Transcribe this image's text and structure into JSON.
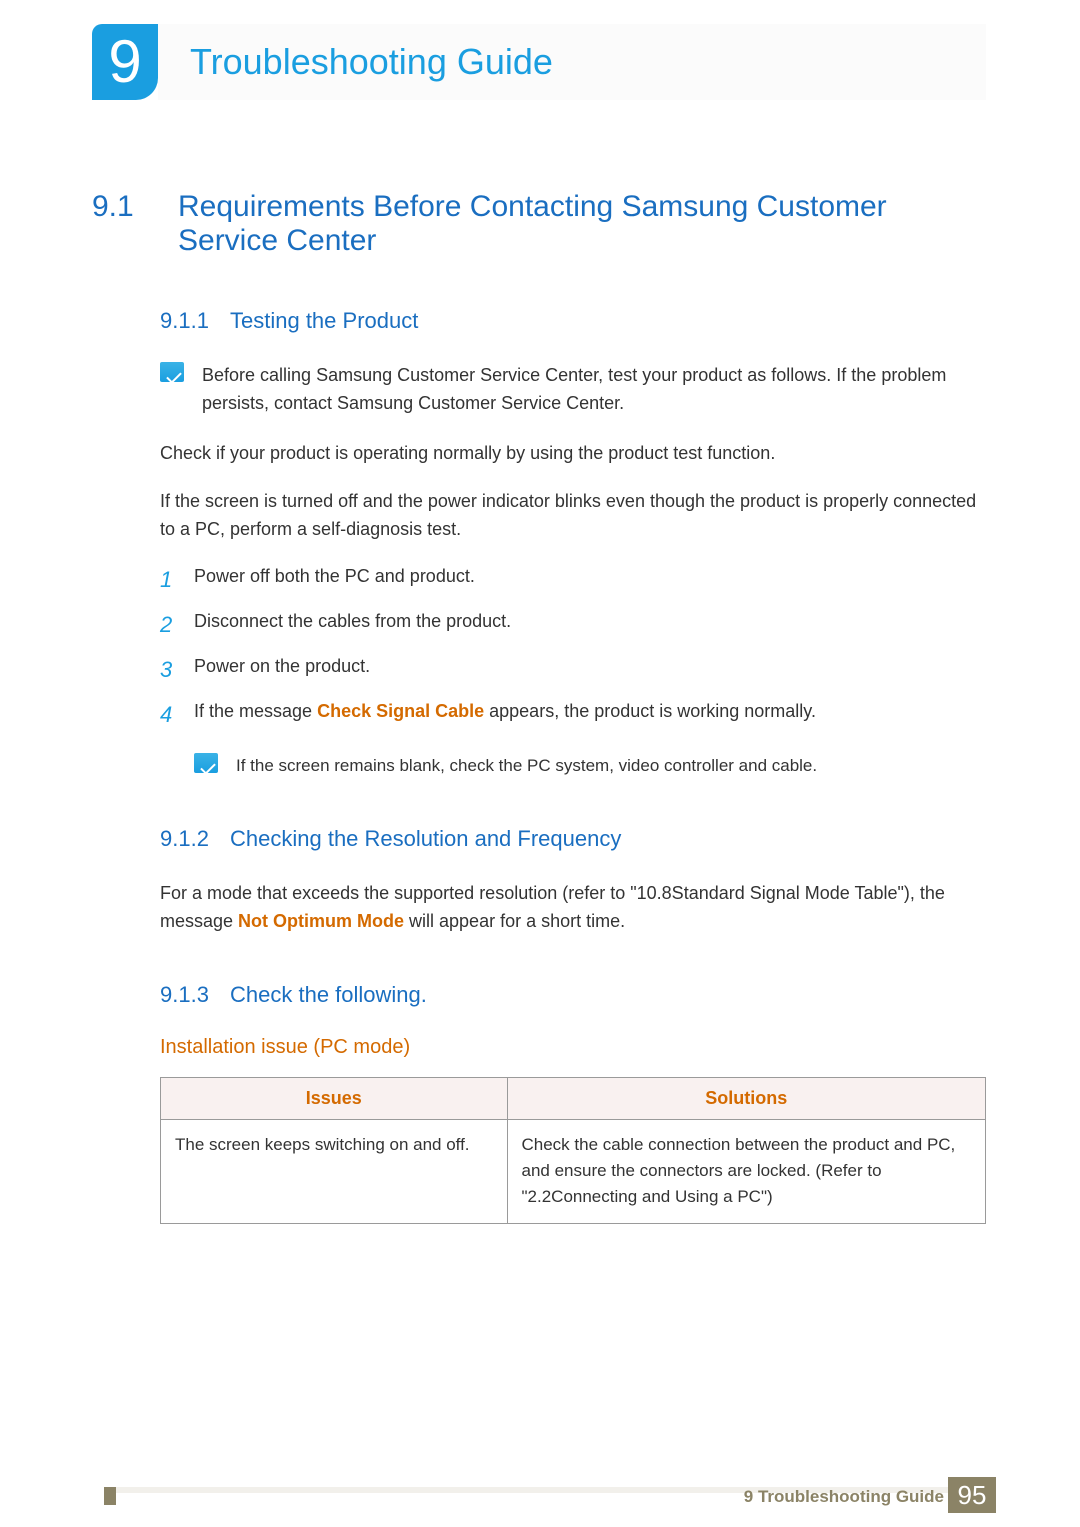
{
  "chapter": {
    "number": "9",
    "title": "Troubleshooting Guide"
  },
  "section": {
    "number": "9.1",
    "title": "Requirements Before Contacting Samsung Customer Service Center"
  },
  "sub1": {
    "number": "9.1.1",
    "title": "Testing the Product",
    "note": "Before calling Samsung Customer Service Center, test your product as follows. If the problem persists, contact Samsung Customer Service Center.",
    "para1": "Check if your product is operating normally by using the product test function.",
    "para2": "If the screen is turned off and the power indicator blinks even though the product is properly connected to a PC, perform a self-diagnosis test.",
    "steps": {
      "s1": "Power off both the PC and product.",
      "s2": "Disconnect the cables from the product.",
      "s3": "Power on the product.",
      "s4_before": "If the message ",
      "s4_bold": "Check Signal Cable",
      "s4_after": " appears, the product is working normally."
    },
    "subnote": "If the screen remains blank, check the PC system, video controller and cable."
  },
  "sub2": {
    "number": "9.1.2",
    "title": "Checking the Resolution and Frequency",
    "para_before": "For a mode that exceeds the supported resolution (refer to \"10.8Standard Signal Mode Table\"), the message ",
    "para_bold": "Not Optimum Mode",
    "para_after": " will appear for a short time."
  },
  "sub3": {
    "number": "9.1.3",
    "title": "Check the following.",
    "subheading": "Installation issue (PC mode)",
    "table": {
      "header_issues": "Issues",
      "header_solutions": "Solutions",
      "row1_issue": "The screen keeps switching on and off.",
      "row1_solution": "Check the cable connection between the product and PC, and ensure the connectors are locked. (Refer to \"2.2Connecting and Using a PC\")"
    }
  },
  "footer": {
    "chapter_ref": "9 Troubleshooting Guide",
    "page_number": "95"
  },
  "colors": {
    "blue": "#1a9ee0",
    "darkblue": "#1a6ec0",
    "orange": "#d46a00",
    "footer_brown": "#8b8366",
    "table_header_bg": "#f9f1f0",
    "table_border": "#9a9a9a"
  }
}
